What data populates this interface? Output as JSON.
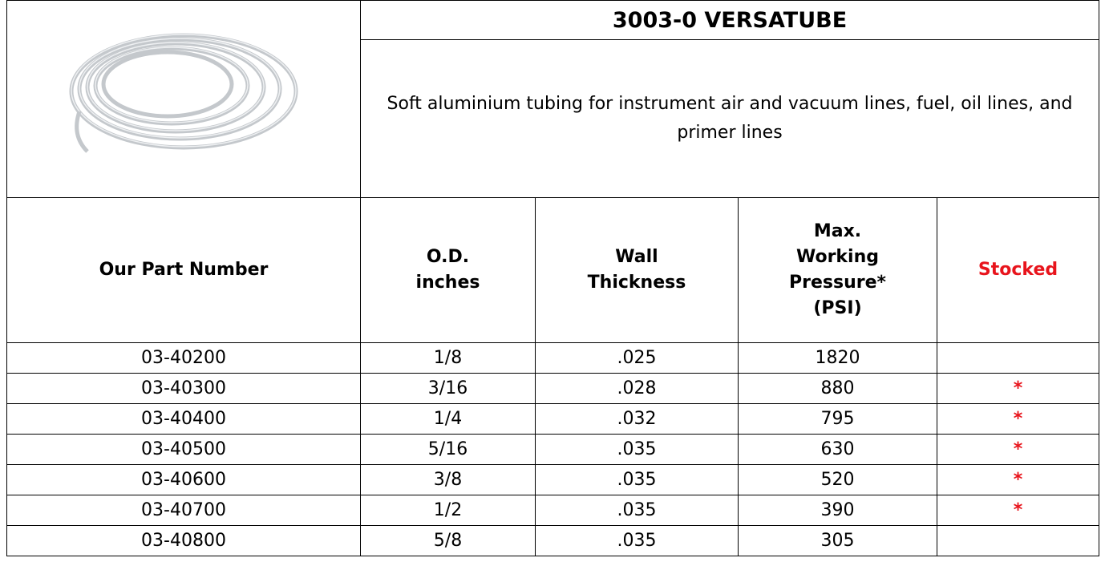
{
  "header": {
    "title": "3003-0 VERSATUBE",
    "description": "Soft aluminium tubing for instrument air and vacuum lines, fuel, oil lines, and primer lines"
  },
  "table": {
    "columns": [
      [
        "Our Part Number"
      ],
      [
        "O.D.",
        "inches"
      ],
      [
        "Wall",
        "Thickness"
      ],
      [
        "Max.",
        "Working",
        "Pressure*",
        "(PSI)"
      ],
      [
        "Stocked"
      ]
    ],
    "rows": [
      [
        "03-40200",
        "1/8",
        ".025",
        "1820"
      ],
      [
        "03-40300",
        "3/16",
        ".028",
        "880",
        "*"
      ],
      [
        "03-40400",
        "1/4",
        ".032",
        "795",
        "*"
      ],
      [
        "03-40500",
        "5/16",
        ".035",
        "630",
        "*"
      ],
      [
        "03-40600",
        "3/8",
        ".035",
        "520",
        "*"
      ],
      [
        "03-40700",
        "1/2",
        ".035",
        "390",
        "*"
      ],
      [
        "03-40800",
        "5/8",
        ".035",
        "305"
      ]
    ]
  }
}
